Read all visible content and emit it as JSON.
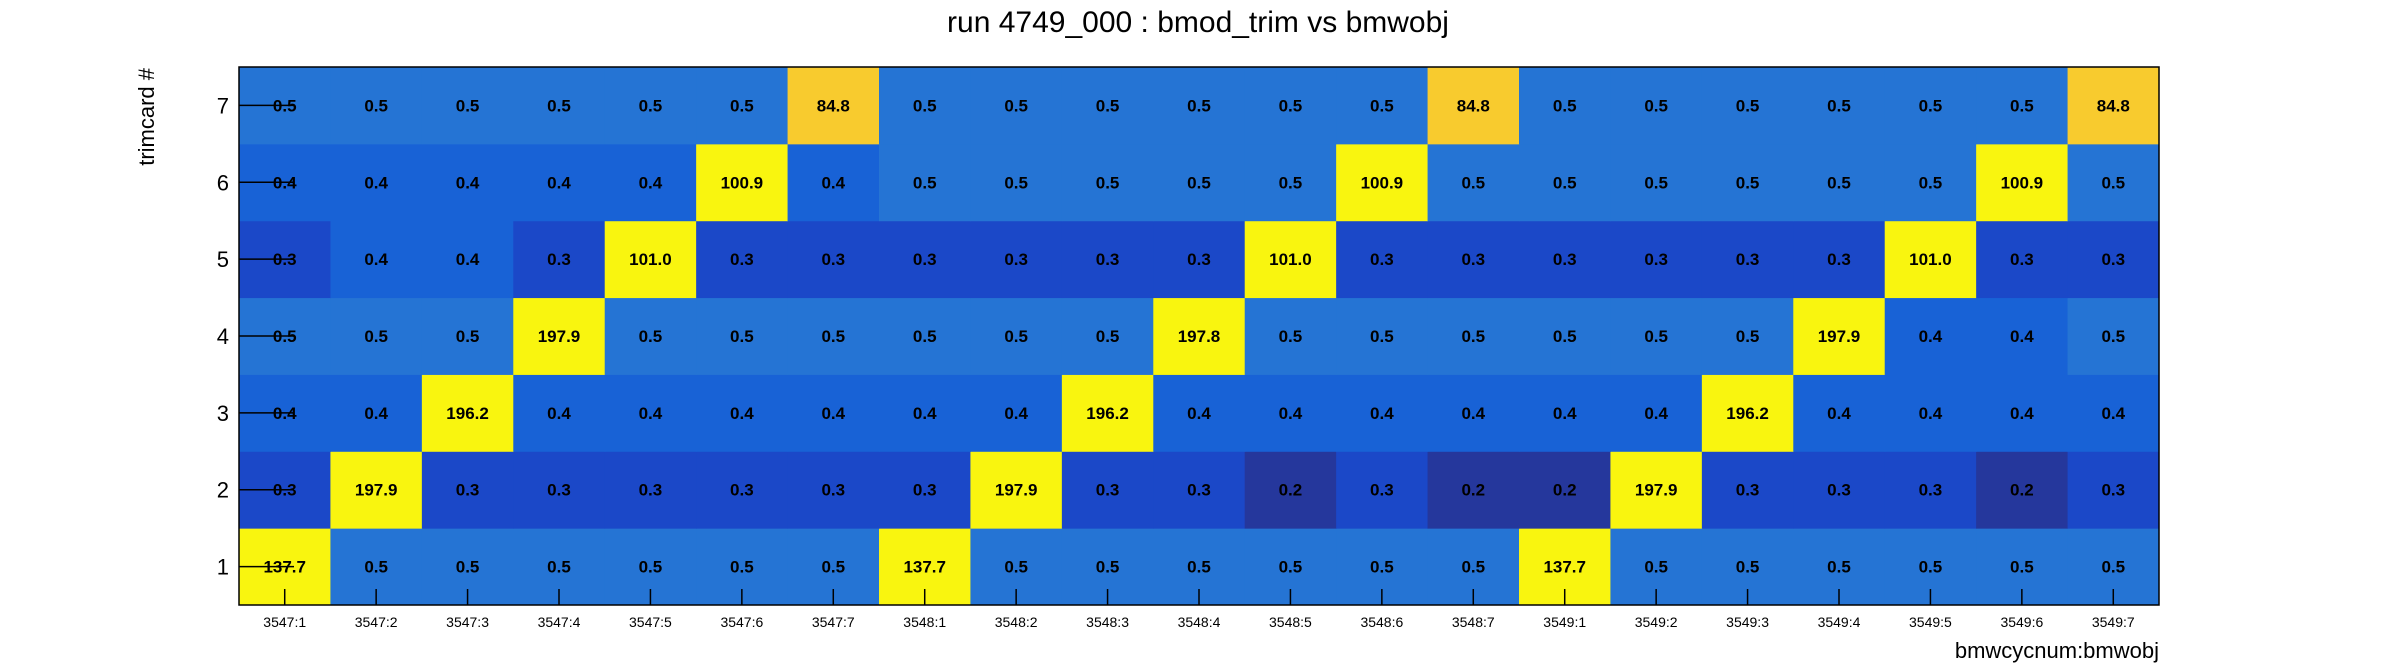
{
  "chart_data": {
    "type": "heatmap",
    "title": "run 4749_000 : bmod_trim vs bmwobj",
    "xlabel": "bmwcycnum:bmwobj",
    "ylabel": "trimcard #",
    "x_categories": [
      "3547:1",
      "3547:2",
      "3547:3",
      "3547:4",
      "3547:5",
      "3547:6",
      "3547:7",
      "3548:1",
      "3548:2",
      "3548:3",
      "3548:4",
      "3548:5",
      "3548:6",
      "3548:7",
      "3549:1",
      "3549:2",
      "3549:3",
      "3549:4",
      "3549:5",
      "3549:6",
      "3549:7"
    ],
    "y_categories": [
      "1",
      "2",
      "3",
      "4",
      "5",
      "6",
      "7"
    ],
    "values": [
      [
        137.7,
        0.5,
        0.5,
        0.5,
        0.5,
        0.5,
        0.5,
        137.7,
        0.5,
        0.5,
        0.5,
        0.5,
        0.5,
        0.5,
        137.7,
        0.5,
        0.5,
        0.5,
        0.5,
        0.5,
        0.5
      ],
      [
        0.3,
        197.9,
        0.3,
        0.3,
        0.3,
        0.3,
        0.3,
        0.3,
        197.9,
        0.3,
        0.3,
        0.2,
        0.3,
        0.2,
        0.2,
        197.9,
        0.3,
        0.3,
        0.3,
        0.2,
        0.3
      ],
      [
        0.4,
        0.4,
        196.2,
        0.4,
        0.4,
        0.4,
        0.4,
        0.4,
        0.4,
        196.2,
        0.4,
        0.4,
        0.4,
        0.4,
        0.4,
        0.4,
        196.2,
        0.4,
        0.4,
        0.4,
        0.4
      ],
      [
        0.5,
        0.5,
        0.5,
        197.9,
        0.5,
        0.5,
        0.5,
        0.5,
        0.5,
        0.5,
        197.8,
        0.5,
        0.5,
        0.5,
        0.5,
        0.5,
        0.5,
        197.9,
        0.4,
        0.4,
        0.5
      ],
      [
        0.3,
        0.4,
        0.4,
        0.3,
        101.0,
        0.3,
        0.3,
        0.3,
        0.3,
        0.3,
        0.3,
        101.0,
        0.3,
        0.3,
        0.3,
        0.3,
        0.3,
        0.3,
        101.0,
        0.3,
        0.3
      ],
      [
        0.4,
        0.4,
        0.4,
        0.4,
        0.4,
        100.9,
        0.4,
        0.5,
        0.5,
        0.5,
        0.5,
        0.5,
        100.9,
        0.5,
        0.5,
        0.5,
        0.5,
        0.5,
        0.5,
        100.9,
        0.5
      ],
      [
        0.5,
        0.5,
        0.5,
        0.5,
        0.5,
        0.5,
        84.8,
        0.5,
        0.5,
        0.5,
        0.5,
        0.5,
        0.5,
        84.8,
        0.5,
        0.5,
        0.5,
        0.5,
        0.5,
        0.5,
        84.8
      ]
    ],
    "value_labels": [
      [
        "137.7",
        "0.5",
        "0.5",
        "0.5",
        "0.5",
        "0.5",
        "0.5",
        "137.7",
        "0.5",
        "0.5",
        "0.5",
        "0.5",
        "0.5",
        "0.5",
        "137.7",
        "0.5",
        "0.5",
        "0.5",
        "0.5",
        "0.5",
        "0.5"
      ],
      [
        "0.3",
        "197.9",
        "0.3",
        "0.3",
        "0.3",
        "0.3",
        "0.3",
        "0.3",
        "197.9",
        "0.3",
        "0.3",
        "0.2",
        "0.3",
        "0.2",
        "0.2",
        "197.9",
        "0.3",
        "0.3",
        "0.3",
        "0.2",
        "0.3"
      ],
      [
        "0.4",
        "0.4",
        "196.2",
        "0.4",
        "0.4",
        "0.4",
        "0.4",
        "0.4",
        "0.4",
        "196.2",
        "0.4",
        "0.4",
        "0.4",
        "0.4",
        "0.4",
        "0.4",
        "196.2",
        "0.4",
        "0.4",
        "0.4",
        "0.4"
      ],
      [
        "0.5",
        "0.5",
        "0.5",
        "197.9",
        "0.5",
        "0.5",
        "0.5",
        "0.5",
        "0.5",
        "0.5",
        "197.8",
        "0.5",
        "0.5",
        "0.5",
        "0.5",
        "0.5",
        "0.5",
        "197.9",
        "0.4",
        "0.4",
        "0.5"
      ],
      [
        "0.3",
        "0.4",
        "0.4",
        "0.3",
        "101.0",
        "0.3",
        "0.3",
        "0.3",
        "0.3",
        "0.3",
        "0.3",
        "101.0",
        "0.3",
        "0.3",
        "0.3",
        "0.3",
        "0.3",
        "0.3",
        "101.0",
        "0.3",
        "0.3"
      ],
      [
        "0.4",
        "0.4",
        "0.4",
        "0.4",
        "0.4",
        "100.9",
        "0.4",
        "0.5",
        "0.5",
        "0.5",
        "0.5",
        "0.5",
        "100.9",
        "0.5",
        "0.5",
        "0.5",
        "0.5",
        "0.5",
        "0.5",
        "100.9",
        "0.5"
      ],
      [
        "0.5",
        "0.5",
        "0.5",
        "0.5",
        "0.5",
        "0.5",
        "84.8",
        "0.5",
        "0.5",
        "0.5",
        "0.5",
        "0.5",
        "0.5",
        "84.8",
        "0.5",
        "0.5",
        "0.5",
        "0.5",
        "0.5",
        "0.5",
        "84.8"
      ]
    ],
    "colors": {
      "very_low": "#25379c",
      "low": "#1b48c8",
      "mid_low": "#1656d8",
      "mid": "#1862d6",
      "mid_high": "#2574d4",
      "high_85": "#f8cb2e",
      "high_100": "#f9f50f"
    },
    "grid": false
  }
}
